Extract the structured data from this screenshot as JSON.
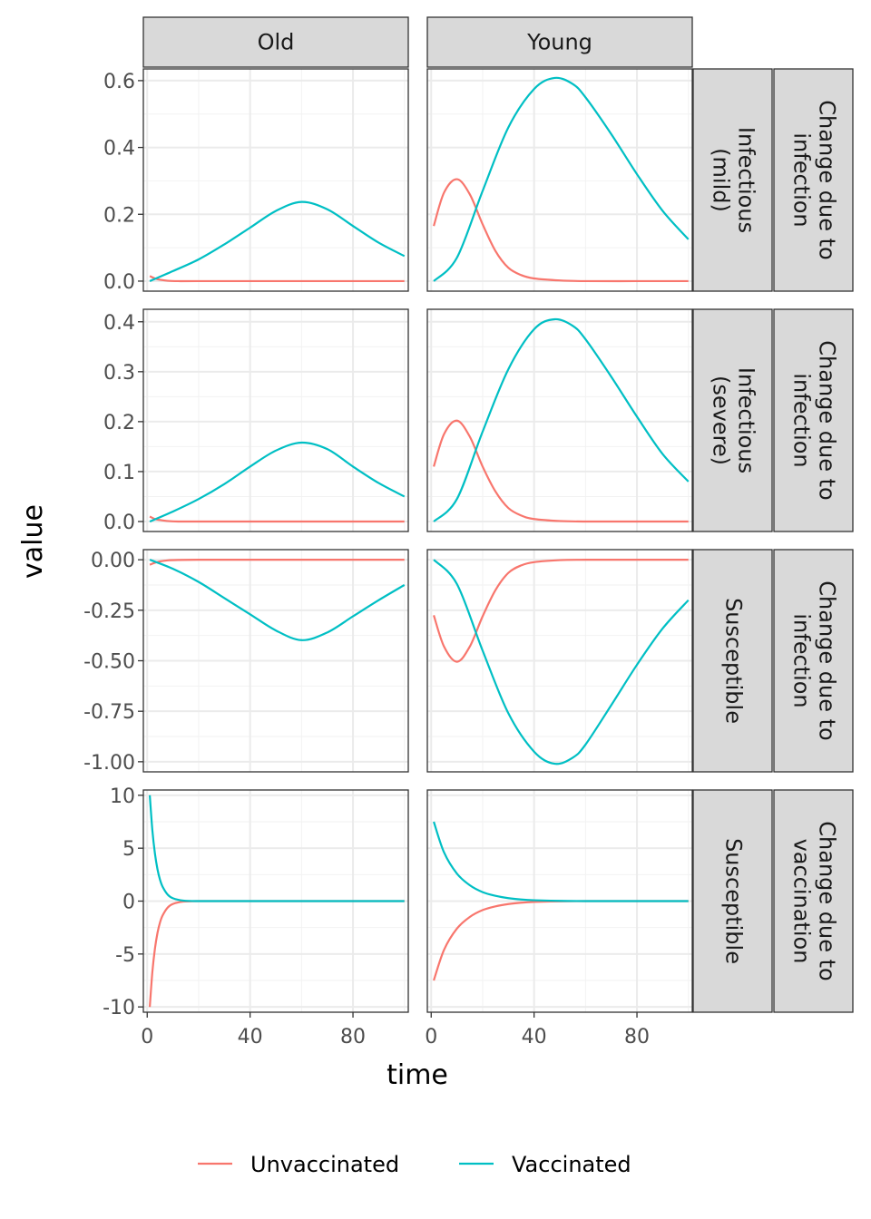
{
  "chart_data": {
    "type": "line",
    "xlabel": "time",
    "ylabel": "value",
    "x_range": [
      1,
      100
    ],
    "xlim": [
      -1.5,
      101.5
    ],
    "x_ticks": [
      0,
      40,
      80
    ],
    "x_tick_labels": [
      "0",
      "40",
      "80"
    ],
    "columns": [
      "Old",
      "Young"
    ],
    "legend_position": "bottom",
    "grid": true,
    "series_names": [
      "Unvaccinated",
      "Vaccinated"
    ],
    "series_colors": {
      "Unvaccinated": "#F8766D",
      "Vaccinated": "#00BFC4"
    },
    "rows": [
      {
        "strip_inner": [
          "Infectious",
          "(mild)"
        ],
        "strip_outer": [
          "Change due to",
          "infection"
        ],
        "ylim": [
          -0.03,
          0.635
        ],
        "y_ticks": [
          0,
          0.2,
          0.4,
          0.6
        ],
        "y_tick_labels": [
          "0.0",
          "0.2",
          "0.4",
          "0.6"
        ],
        "panels": [
          {
            "column": "Old",
            "series": [
              {
                "name": "Unvaccinated",
                "x": [
                  1,
                  3,
                  5,
                  8,
                  12,
                  20,
                  40,
                  60,
                  80,
                  100
                ],
                "y": [
                  0.015,
                  0.008,
                  0.004,
                  0.001,
                  0,
                  0,
                  0,
                  0,
                  0,
                  0
                ]
              },
              {
                "name": "Vaccinated",
                "x": [
                  1,
                  10,
                  20,
                  30,
                  40,
                  50,
                  60,
                  70,
                  80,
                  90,
                  100
                ],
                "y": [
                  0.0,
                  0.03,
                  0.065,
                  0.11,
                  0.16,
                  0.21,
                  0.237,
                  0.215,
                  0.165,
                  0.115,
                  0.075
                ]
              }
            ]
          },
          {
            "column": "Young",
            "series": [
              {
                "name": "Unvaccinated",
                "x": [
                  1,
                  5,
                  10,
                  15,
                  20,
                  25,
                  30,
                  35,
                  40,
                  50,
                  60,
                  80,
                  100
                ],
                "y": [
                  0.165,
                  0.265,
                  0.305,
                  0.26,
                  0.17,
                  0.09,
                  0.04,
                  0.018,
                  0.008,
                  0.002,
                  0.0,
                  0.0,
                  0.0
                ]
              },
              {
                "name": "Vaccinated",
                "x": [
                  1,
                  10,
                  20,
                  30,
                  40,
                  48,
                  55,
                  60,
                  70,
                  80,
                  90,
                  100
                ],
                "y": [
                  0.0,
                  0.07,
                  0.27,
                  0.46,
                  0.575,
                  0.608,
                  0.59,
                  0.55,
                  0.44,
                  0.32,
                  0.21,
                  0.125
                ]
              }
            ]
          }
        ]
      },
      {
        "strip_inner": [
          "Infectious",
          "(severe)"
        ],
        "strip_outer": [
          "Change due to",
          "infection"
        ],
        "ylim": [
          -0.02,
          0.425
        ],
        "y_ticks": [
          0,
          0.1,
          0.2,
          0.3,
          0.4
        ],
        "y_tick_labels": [
          "0.0",
          "0.1",
          "0.2",
          "0.3",
          "0.4"
        ],
        "panels": [
          {
            "column": "Old",
            "series": [
              {
                "name": "Unvaccinated",
                "x": [
                  1,
                  3,
                  5,
                  8,
                  12,
                  20,
                  40,
                  60,
                  80,
                  100
                ],
                "y": [
                  0.01,
                  0.005,
                  0.003,
                  0.001,
                  0,
                  0,
                  0,
                  0,
                  0,
                  0
                ]
              },
              {
                "name": "Vaccinated",
                "x": [
                  1,
                  10,
                  20,
                  30,
                  40,
                  50,
                  60,
                  70,
                  80,
                  90,
                  100
                ],
                "y": [
                  0.0,
                  0.02,
                  0.045,
                  0.075,
                  0.11,
                  0.142,
                  0.158,
                  0.145,
                  0.11,
                  0.077,
                  0.05
                ]
              }
            ]
          },
          {
            "column": "Young",
            "series": [
              {
                "name": "Unvaccinated",
                "x": [
                  1,
                  5,
                  10,
                  15,
                  20,
                  25,
                  30,
                  35,
                  40,
                  50,
                  60,
                  80,
                  100
                ],
                "y": [
                  0.11,
                  0.175,
                  0.202,
                  0.17,
                  0.11,
                  0.06,
                  0.027,
                  0.012,
                  0.005,
                  0.001,
                  0.0,
                  0.0,
                  0.0
                ]
              },
              {
                "name": "Vaccinated",
                "x": [
                  1,
                  10,
                  20,
                  30,
                  40,
                  48,
                  55,
                  60,
                  70,
                  80,
                  90,
                  100
                ],
                "y": [
                  0.0,
                  0.045,
                  0.18,
                  0.305,
                  0.385,
                  0.405,
                  0.392,
                  0.365,
                  0.29,
                  0.21,
                  0.135,
                  0.08
                ]
              }
            ]
          }
        ]
      },
      {
        "strip_inner": [
          "Susceptible"
        ],
        "strip_outer": [
          "Change due to",
          "infection"
        ],
        "ylim": [
          -1.05,
          0.05
        ],
        "y_ticks": [
          0,
          -0.25,
          -0.5,
          -0.75,
          -1.0
        ],
        "y_tick_labels": [
          "0.00",
          "-0.25",
          "-0.50",
          "-0.75",
          "-1.00"
        ],
        "panels": [
          {
            "column": "Old",
            "series": [
              {
                "name": "Unvaccinated",
                "x": [
                  1,
                  3,
                  5,
                  8,
                  12,
                  20,
                  40,
                  60,
                  80,
                  100
                ],
                "y": [
                  -0.025,
                  -0.015,
                  -0.008,
                  -0.003,
                  -0.001,
                  0,
                  0,
                  0,
                  0,
                  0
                ]
              },
              {
                "name": "Vaccinated",
                "x": [
                  1,
                  10,
                  20,
                  30,
                  40,
                  50,
                  60,
                  70,
                  80,
                  90,
                  100
                ],
                "y": [
                  0.0,
                  -0.045,
                  -0.11,
                  -0.19,
                  -0.27,
                  -0.35,
                  -0.398,
                  -0.36,
                  -0.28,
                  -0.2,
                  -0.125
                ]
              }
            ]
          },
          {
            "column": "Young",
            "series": [
              {
                "name": "Unvaccinated",
                "x": [
                  1,
                  5,
                  10,
                  15,
                  20,
                  25,
                  30,
                  35,
                  40,
                  50,
                  60,
                  80,
                  100
                ],
                "y": [
                  -0.275,
                  -0.43,
                  -0.505,
                  -0.43,
                  -0.28,
                  -0.15,
                  -0.065,
                  -0.028,
                  -0.012,
                  -0.002,
                  0.0,
                  0.0,
                  0.0
                ]
              },
              {
                "name": "Vaccinated",
                "x": [
                  1,
                  10,
                  20,
                  30,
                  40,
                  48,
                  55,
                  60,
                  70,
                  80,
                  90,
                  100
                ],
                "y": [
                  0.0,
                  -0.12,
                  -0.45,
                  -0.76,
                  -0.95,
                  -1.01,
                  -0.98,
                  -0.915,
                  -0.72,
                  -0.52,
                  -0.34,
                  -0.2
                ]
              }
            ]
          }
        ]
      },
      {
        "strip_inner": [
          "Susceptible"
        ],
        "strip_outer": [
          "Change due to",
          "vaccination"
        ],
        "ylim": [
          -10.5,
          10.5
        ],
        "y_ticks": [
          10,
          5,
          0,
          -5,
          -10
        ],
        "y_tick_labels": [
          "10",
          "5",
          "0",
          "-5",
          "-10"
        ],
        "panels": [
          {
            "column": "Old",
            "series": [
              {
                "name": "Unvaccinated",
                "x": [
                  1,
                  2,
                  3,
                  4,
                  5,
                  6,
                  8,
                  10,
                  14,
                  20,
                  40,
                  60,
                  80,
                  100
                ],
                "y": [
                  -10,
                  -6.7,
                  -4.5,
                  -3.0,
                  -2.0,
                  -1.35,
                  -0.6,
                  -0.27,
                  -0.05,
                  0,
                  0,
                  0,
                  0,
                  0
                ]
              },
              {
                "name": "Vaccinated",
                "x": [
                  1,
                  2,
                  3,
                  4,
                  5,
                  6,
                  8,
                  10,
                  14,
                  20,
                  40,
                  60,
                  80,
                  100
                ],
                "y": [
                  10,
                  6.7,
                  4.5,
                  3.0,
                  2.0,
                  1.35,
                  0.6,
                  0.27,
                  0.05,
                  0,
                  0,
                  0,
                  0,
                  0
                ]
              }
            ]
          },
          {
            "column": "Young",
            "series": [
              {
                "name": "Unvaccinated",
                "x": [
                  1,
                  5,
                  10,
                  15,
                  20,
                  25,
                  30,
                  35,
                  40,
                  50,
                  60,
                  80,
                  100
                ],
                "y": [
                  -7.5,
                  -4.6,
                  -2.6,
                  -1.5,
                  -0.85,
                  -0.5,
                  -0.28,
                  -0.15,
                  -0.08,
                  -0.02,
                  0,
                  0,
                  0
                ]
              },
              {
                "name": "Vaccinated",
                "x": [
                  1,
                  5,
                  10,
                  15,
                  20,
                  25,
                  30,
                  35,
                  40,
                  50,
                  60,
                  80,
                  100
                ],
                "y": [
                  7.5,
                  4.6,
                  2.6,
                  1.5,
                  0.85,
                  0.5,
                  0.28,
                  0.15,
                  0.08,
                  0.02,
                  0,
                  0,
                  0
                ]
              }
            ]
          }
        ]
      }
    ]
  }
}
